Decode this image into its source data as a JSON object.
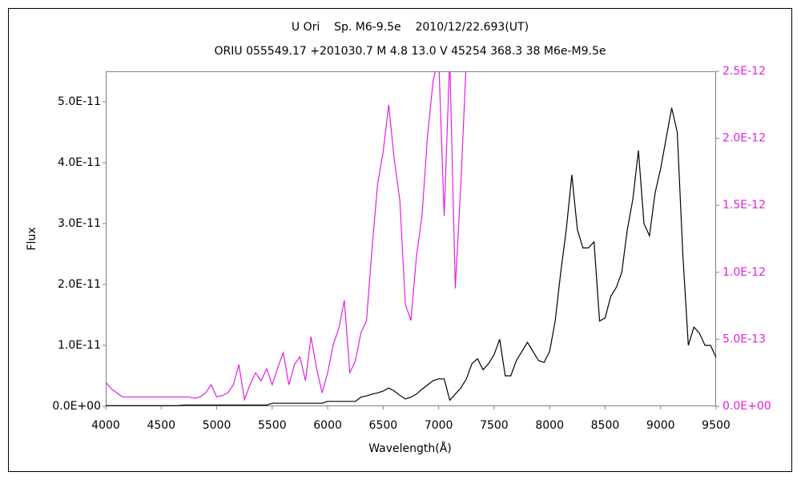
{
  "chart_data": {
    "type": "line",
    "title": "U Ori    Sp. M6-9.5e    2010/12/22.693(UT)",
    "subtitle": "ORIU 055549.17 +201030.7 M 4.8 13.0 V 45254 368.3 38 M6e-M9.5e",
    "x_label": "Wavelength(Å)",
    "y_label": "Flux",
    "x": [
      4000,
      4050,
      4100,
      4150,
      4200,
      4250,
      4300,
      4350,
      4400,
      4450,
      4500,
      4550,
      4600,
      4650,
      4700,
      4750,
      4800,
      4850,
      4900,
      4950,
      5000,
      5050,
      5100,
      5150,
      5200,
      5250,
      5300,
      5350,
      5400,
      5450,
      5500,
      5550,
      5600,
      5650,
      5700,
      5750,
      5800,
      5850,
      5900,
      5950,
      6000,
      6050,
      6100,
      6150,
      6200,
      6250,
      6300,
      6350,
      6400,
      6450,
      6500,
      6550,
      6600,
      6650,
      6700,
      6750,
      6800,
      6850,
      6900,
      6950,
      7000,
      7050,
      7100,
      7150,
      7200,
      7250,
      7300,
      7350,
      7400,
      7450,
      7500,
      7550,
      7600,
      7650,
      7700,
      7750,
      7800,
      7850,
      7900,
      7950,
      8000,
      8050,
      8100,
      8150,
      8200,
      8250,
      8300,
      8350,
      8400,
      8450,
      8500,
      8550,
      8600,
      8650,
      8700,
      8750,
      8800,
      8850,
      8900,
      8950,
      9000,
      9050,
      9100,
      9150,
      9200,
      9250,
      9300,
      9350,
      9400,
      9450,
      9500
    ],
    "series": [
      {
        "color": "#000000",
        "values": [
          1e-13,
          1e-13,
          1e-13,
          1e-13,
          1e-13,
          1e-13,
          1e-13,
          1e-13,
          1e-13,
          1e-13,
          1e-13,
          1e-13,
          1e-13,
          1e-13,
          2e-13,
          2e-13,
          2e-13,
          2e-13,
          2e-13,
          2e-13,
          2e-13,
          2e-13,
          2e-13,
          2e-13,
          2e-13,
          2e-13,
          2e-13,
          2e-13,
          2e-13,
          2e-13,
          5e-13,
          5e-13,
          5e-13,
          5e-13,
          5e-13,
          5e-13,
          5e-13,
          5e-13,
          5e-13,
          5e-13,
          8e-13,
          8e-13,
          8e-13,
          8e-13,
          8e-13,
          8e-13,
          1.5e-12,
          1.7e-12,
          2e-12,
          2.2e-12,
          2.5e-12,
          3e-12,
          2.5e-12,
          1.8e-12,
          1.2e-12,
          1.5e-12,
          2e-12,
          2.8e-12,
          3.5e-12,
          4.2e-12,
          4.5e-12,
          4.5e-12,
          1e-12,
          2e-12,
          3e-12,
          4.5e-12,
          7e-12,
          7.8e-12,
          6e-12,
          7e-12,
          8.5e-12,
          1.1e-11,
          5e-12,
          5e-12,
          7.5e-12,
          9e-12,
          1.05e-11,
          9e-12,
          7.5e-12,
          7.2e-12,
          9e-12,
          1.4e-11,
          2.2e-11,
          2.9e-11,
          3.8e-11,
          2.9e-11,
          2.6e-11,
          2.6e-11,
          2.7e-11,
          1.4e-11,
          1.45e-11,
          1.8e-11,
          1.95e-11,
          2.2e-11,
          2.9e-11,
          3.4e-11,
          4.2e-11,
          3e-11,
          2.8e-11,
          3.5e-11,
          3.9e-11,
          4.4e-11,
          4.9e-11,
          4.5e-11,
          2.5e-11,
          1e-11,
          1.3e-11,
          1.2e-11,
          1e-11,
          1e-11,
          8e-12
        ]
      },
      {
        "color": "#e020e0",
        "axis": "y2",
        "values": [
          1.8e-13,
          1.3e-13,
          1e-13,
          7e-14,
          7e-14,
          7e-14,
          7e-14,
          7e-14,
          7e-14,
          7e-14,
          7e-14,
          7e-14,
          7e-14,
          7e-14,
          7e-14,
          7e-14,
          6e-14,
          7e-14,
          1e-13,
          1.6e-13,
          7e-14,
          8e-14,
          1e-13,
          1.6e-13,
          3.1e-13,
          5e-14,
          1.6e-13,
          2.5e-13,
          1.9e-13,
          2.8e-13,
          1.6e-13,
          2.9e-13,
          4e-13,
          1.6e-13,
          3.1e-13,
          3.7e-13,
          1.9e-13,
          5.2e-13,
          2.8e-13,
          1e-13,
          2.5e-13,
          4.6e-13,
          5.8e-13,
          7.9e-13,
          2.5e-13,
          3.4e-13,
          5.5e-13,
          6.4e-13,
          1.18e-12,
          1.66e-12,
          1.9e-12,
          2.25e-12,
          1.84e-12,
          1.54e-12,
          7.6e-13,
          6.4e-13,
          1.12e-12,
          1.42e-12,
          2.02e-12,
          2.43e-12,
          2.6e-12,
          1.42e-12,
          2.6e-12,
          8.8e-13,
          1.66e-12,
          2.6e-12,
          null,
          null,
          null,
          null,
          null,
          null,
          null,
          null,
          null,
          null,
          null,
          null,
          null,
          null,
          null,
          null,
          null,
          null,
          null,
          null,
          null,
          null,
          null,
          null,
          null,
          null,
          null,
          null,
          null,
          null,
          null,
          null,
          null,
          null,
          null,
          null,
          null,
          null,
          null,
          null,
          null,
          null,
          null,
          null,
          null
        ]
      }
    ],
    "xlim": [
      4000,
      9500
    ],
    "xticks": [
      4000,
      4500,
      5000,
      5500,
      6000,
      6500,
      7000,
      7500,
      8000,
      8500,
      9000,
      9500
    ],
    "ylim": [
      0,
      5.5e-11
    ],
    "yticks": [
      {
        "value": 0,
        "label": "0.0E+00"
      },
      {
        "value": 1e-11,
        "label": "1.0E-11"
      },
      {
        "value": 2e-11,
        "label": "2.0E-11"
      },
      {
        "value": 3e-11,
        "label": "3.0E-11"
      },
      {
        "value": 4e-11,
        "label": "4.0E-11"
      },
      {
        "value": 5e-11,
        "label": "5.0E-11"
      }
    ],
    "y2lim": [
      0,
      2.5e-12
    ],
    "y2ticks": [
      {
        "value": 0,
        "label": "0.0E+00"
      },
      {
        "value": 5e-13,
        "label": "5.0E-13"
      },
      {
        "value": 1e-12,
        "label": "1.0E-12"
      },
      {
        "value": 1.5e-12,
        "label": "1.5E-12"
      },
      {
        "value": 2e-12,
        "label": "2.0E-12"
      },
      {
        "value": 2.5e-12,
        "label": "2.5E-12"
      }
    ],
    "y2_color": "#e020e0"
  }
}
